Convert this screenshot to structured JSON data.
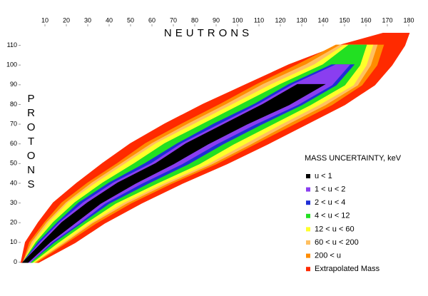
{
  "chart_data": {
    "type": "nuclide-bands",
    "x_label": "NEUTRONS",
    "y_label": "PROTONS",
    "legend_title": "MASS UNCERTAINTY, keV",
    "xlim": [
      0,
      185
    ],
    "ylim": [
      -2,
      116
    ],
    "xticks": [
      10,
      20,
      30,
      40,
      50,
      60,
      70,
      80,
      90,
      100,
      110,
      120,
      130,
      140,
      150,
      160,
      170,
      180
    ],
    "yticks": [
      0,
      10,
      20,
      30,
      40,
      50,
      60,
      70,
      80,
      90,
      100,
      110
    ],
    "series": [
      {
        "name": "u < 1",
        "color": "#000000",
        "z": [
          0,
          10,
          20,
          30,
          40,
          50,
          60,
          70,
          80,
          90
        ],
        "n_min": [
          0,
          9,
          18,
          30,
          44,
          62,
          76,
          94,
          112,
          128
        ],
        "n_max": [
          2,
          12,
          24,
          36,
          52,
          70,
          86,
          104,
          124,
          140
        ]
      },
      {
        "name": "1 < u < 2",
        "color": "#8a3ef0",
        "z": [
          0,
          10,
          20,
          30,
          40,
          50,
          60,
          70,
          80,
          90,
          100
        ],
        "n_min": [
          0,
          8,
          17,
          28,
          42,
          60,
          74,
          92,
          110,
          126,
          146
        ],
        "n_max": [
          3,
          13,
          26,
          38,
          55,
          74,
          90,
          108,
          128,
          144,
          152
        ]
      },
      {
        "name": "2 < u < 4",
        "color": "#1f2fd6",
        "z": [
          0,
          10,
          20,
          30,
          40,
          50,
          60,
          70,
          80,
          90,
          100
        ],
        "n_min": [
          0,
          7,
          16,
          26,
          40,
          57,
          72,
          89,
          108,
          124,
          144
        ],
        "n_max": [
          3,
          14,
          27,
          40,
          58,
          77,
          93,
          111,
          130,
          146,
          154
        ]
      },
      {
        "name": "4 < u < 12",
        "color": "#22e022",
        "z": [
          0,
          10,
          20,
          30,
          40,
          50,
          60,
          70,
          80,
          90,
          100,
          110
        ],
        "n_min": [
          0,
          6,
          14,
          24,
          37,
          52,
          66,
          84,
          102,
          120,
          140,
          152
        ],
        "n_max": [
          4,
          16,
          29,
          43,
          62,
          82,
          98,
          116,
          134,
          150,
          157,
          160
        ]
      },
      {
        "name": "12 < u < 60",
        "color": "#ffff2a",
        "z": [
          0,
          10,
          20,
          30,
          40,
          50,
          60,
          70,
          80,
          90,
          100,
          110
        ],
        "n_min": [
          0,
          5,
          12,
          21,
          34,
          48,
          62,
          80,
          98,
          116,
          136,
          150
        ],
        "n_max": [
          5,
          18,
          31,
          46,
          65,
          86,
          103,
          120,
          138,
          154,
          160,
          163
        ]
      },
      {
        "name": "60 < u < 200",
        "color": "#ffc060",
        "z": [
          0,
          10,
          20,
          30,
          40,
          50,
          60,
          70,
          80,
          90,
          100,
          110
        ],
        "n_min": [
          0,
          4,
          11,
          20,
          32,
          46,
          60,
          77,
          95,
          112,
          132,
          148
        ],
        "n_max": [
          5,
          19,
          32,
          48,
          67,
          88,
          106,
          123,
          141,
          156,
          162,
          165
        ]
      },
      {
        "name": "200 < u",
        "color": "#ff8c00",
        "z": [
          0,
          10,
          20,
          30,
          40,
          50,
          60,
          70,
          80,
          90,
          100,
          110
        ],
        "n_min": [
          0,
          3,
          10,
          18,
          30,
          44,
          57,
          74,
          92,
          109,
          128,
          146
        ],
        "n_max": [
          6,
          20,
          34,
          50,
          69,
          90,
          108,
          126,
          144,
          158,
          165,
          168
        ]
      },
      {
        "name": "Extrapolated Mass",
        "color": "#ff2a00",
        "z": [
          0,
          10,
          20,
          30,
          40,
          50,
          60,
          70,
          80,
          90,
          100,
          110,
          116
        ],
        "n_min": [
          -1,
          1,
          7,
          14,
          25,
          37,
          50,
          66,
          84,
          104,
          124,
          148,
          168
        ],
        "n_max": [
          7,
          24,
          38,
          55,
          74,
          95,
          114,
          132,
          150,
          164,
          172,
          178,
          180
        ]
      }
    ]
  }
}
